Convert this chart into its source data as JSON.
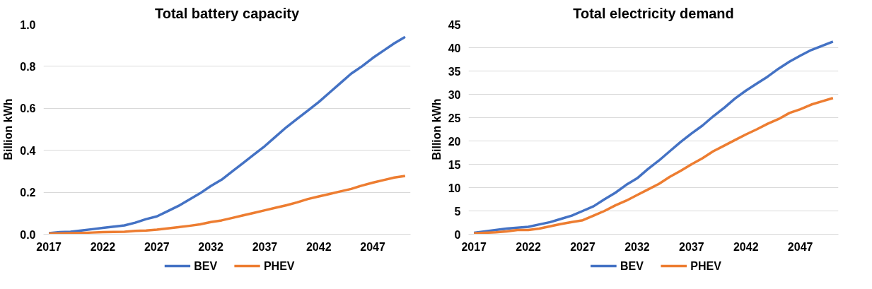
{
  "chart_data": [
    {
      "type": "line",
      "title": "Total battery capacity",
      "ylabel": "Billion kWh",
      "x": [
        2017,
        2018,
        2019,
        2020,
        2021,
        2022,
        2023,
        2024,
        2025,
        2026,
        2027,
        2028,
        2029,
        2030,
        2031,
        2032,
        2033,
        2034,
        2035,
        2036,
        2037,
        2038,
        2039,
        2040,
        2041,
        2042,
        2043,
        2044,
        2045,
        2046,
        2047,
        2048,
        2049,
        2050
      ],
      "xlim": [
        2016.5,
        2050.5
      ],
      "xticks": [
        2017,
        2022,
        2027,
        2032,
        2037,
        2042,
        2047
      ],
      "ylim": [
        0,
        1.0
      ],
      "yticks": [
        {
          "value": 0,
          "label": "0.0"
        },
        {
          "value": 0.2,
          "label": "0.2"
        },
        {
          "value": 0.4,
          "label": "0.4"
        },
        {
          "value": 0.6,
          "label": "0.6"
        },
        {
          "value": 0.8,
          "label": "0.8"
        },
        {
          "value": 1.0,
          "label": "1.0"
        }
      ],
      "grid": "y",
      "legend": "bottom",
      "series": [
        {
          "name": "BEV",
          "color": "#4472c4",
          "values": [
            0.005,
            0.01,
            0.012,
            0.018,
            0.024,
            0.03,
            0.036,
            0.042,
            0.055,
            0.072,
            0.085,
            0.11,
            0.135,
            0.165,
            0.195,
            0.23,
            0.26,
            0.3,
            0.34,
            0.38,
            0.42,
            0.465,
            0.51,
            0.55,
            0.59,
            0.63,
            0.675,
            0.72,
            0.765,
            0.8,
            0.84,
            0.875,
            0.91,
            0.94
          ]
        },
        {
          "name": "PHEV",
          "color": "#ed7d31",
          "values": [
            0.003,
            0.004,
            0.005,
            0.006,
            0.008,
            0.01,
            0.011,
            0.012,
            0.016,
            0.018,
            0.022,
            0.028,
            0.034,
            0.04,
            0.047,
            0.058,
            0.066,
            0.078,
            0.09,
            0.102,
            0.114,
            0.126,
            0.138,
            0.152,
            0.168,
            0.18,
            0.192,
            0.204,
            0.216,
            0.232,
            0.246,
            0.258,
            0.27,
            0.278
          ]
        }
      ]
    },
    {
      "type": "line",
      "title": "Total electricity demand",
      "ylabel": "Billion kWh",
      "x": [
        2017,
        2018,
        2019,
        2020,
        2021,
        2022,
        2023,
        2024,
        2025,
        2026,
        2027,
        2028,
        2029,
        2030,
        2031,
        2032,
        2033,
        2034,
        2035,
        2036,
        2037,
        2038,
        2039,
        2040,
        2041,
        2042,
        2043,
        2044,
        2045,
        2046,
        2047,
        2048,
        2049,
        2050
      ],
      "xlim": [
        2016.5,
        2050.5
      ],
      "xticks": [
        2017,
        2022,
        2027,
        2032,
        2037,
        2042,
        2047
      ],
      "ylim": [
        0,
        45
      ],
      "yticks": [
        0,
        5,
        10,
        15,
        20,
        25,
        30,
        35,
        40,
        45
      ],
      "grid": "y",
      "legend": "bottom",
      "series": [
        {
          "name": "BEV",
          "color": "#4472c4",
          "values": [
            0.3,
            0.6,
            0.9,
            1.2,
            1.4,
            1.6,
            2.1,
            2.6,
            3.3,
            4.0,
            5.0,
            6.0,
            7.5,
            8.9,
            10.6,
            12.0,
            14.0,
            15.8,
            17.8,
            19.8,
            21.6,
            23.3,
            25.3,
            27.1,
            29.1,
            30.8,
            32.3,
            33.8,
            35.5,
            37.0,
            38.3,
            39.5,
            40.4,
            41.3
          ]
        },
        {
          "name": "PHEV",
          "color": "#ed7d31",
          "values": [
            0.2,
            0.3,
            0.4,
            0.6,
            0.9,
            0.9,
            1.2,
            1.7,
            2.2,
            2.6,
            3.0,
            4.0,
            5.0,
            6.2,
            7.2,
            8.4,
            9.6,
            10.8,
            12.3,
            13.6,
            15.0,
            16.3,
            17.8,
            19.0,
            20.2,
            21.4,
            22.5,
            23.7,
            24.7,
            26.0,
            26.8,
            27.8,
            28.5,
            29.2
          ]
        }
      ]
    }
  ]
}
